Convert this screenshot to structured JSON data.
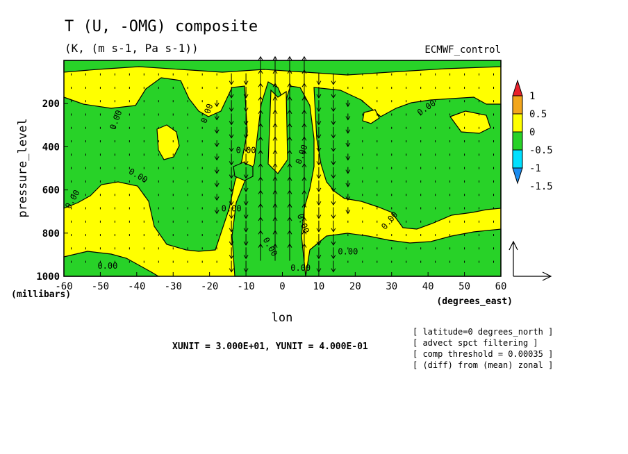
{
  "chart_data": {
    "type": "contour",
    "title": "T (U, -OMG) composite",
    "subtitle": "(K, (m s-1, Pa s-1))",
    "dataset": "ECMWF_control",
    "xlabel": "lon",
    "xunit_label": "(degrees_east)",
    "ylabel": "pressure_level",
    "yunit_label": "(millibars)",
    "x_ticks": [
      "-60",
      "-50",
      "-40",
      "-30",
      "-20",
      "-10",
      "0",
      "10",
      "20",
      "30",
      "40",
      "50",
      "60"
    ],
    "y_ticks": [
      "200",
      "400",
      "600",
      "800",
      "1000"
    ],
    "xlim": [
      -60,
      60
    ],
    "ylim": [
      1000,
      0
    ],
    "contour_labels": [
      "0.00",
      "0.00",
      "0.00",
      "0.00",
      "0.00",
      "0.00",
      "0.00",
      "0.00",
      "0.00",
      "0.00",
      "0.00",
      "0.00",
      "0.00",
      "0.00"
    ],
    "colorbar": {
      "labels": [
        "1",
        "0.5",
        "0",
        "-0.5",
        "-1",
        "-1.5"
      ],
      "colors": [
        "#e8202a",
        "#f2a61c",
        "#ffff00",
        "#28d228",
        "#00e0ff",
        "#1a8cf0"
      ]
    },
    "vector_scale": "XUNIT = 3.000E+01, YUNIT = 4.000E-01",
    "notes": [
      "[ latitude=0 degrees_north ]",
      "[ advect spct filtering ]",
      "[ comp threshold = 0.00035 ]",
      "[ (diff) from (mean) zonal ]"
    ]
  }
}
